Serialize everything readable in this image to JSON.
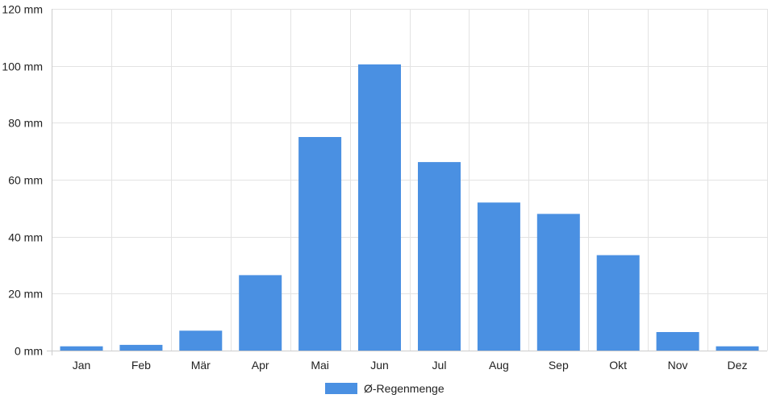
{
  "chart_data": {
    "type": "bar",
    "categories": [
      "Jan",
      "Feb",
      "Mär",
      "Apr",
      "Mai",
      "Jun",
      "Jul",
      "Aug",
      "Sep",
      "Okt",
      "Nov",
      "Dez"
    ],
    "series": [
      {
        "name": "Ø-Regenmenge",
        "color": "#4a90e2",
        "values": [
          1.5,
          2,
          7,
          26.5,
          75,
          100.5,
          66.2,
          52,
          48,
          33.5,
          6.5,
          1.5
        ]
      }
    ],
    "y_ticks": [
      "0 mm",
      "20 mm",
      "40 mm",
      "60 mm",
      "80 mm",
      "100 mm",
      "120 mm"
    ],
    "ylim": [
      0,
      120
    ],
    "unit": "mm",
    "grid": true,
    "legend_position": "bottom-center"
  }
}
